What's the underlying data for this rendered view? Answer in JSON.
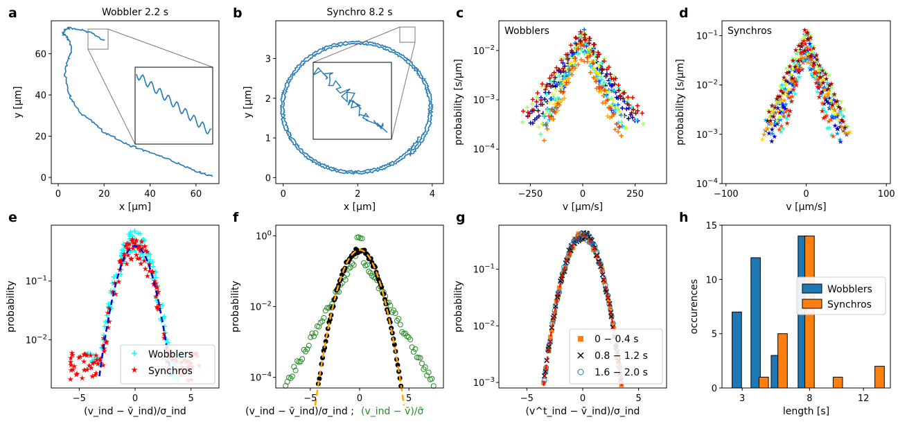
{
  "chart_data": [
    {
      "panel": "a",
      "type": "line",
      "title": "Wobbler 2.2 s",
      "xlabel": "x [μm]",
      "ylabel": "y [μm]",
      "xlim": [
        -3,
        70
      ],
      "ylim": [
        -3,
        76
      ],
      "xticks": [
        0,
        20,
        40,
        60
      ],
      "yticks": [
        0,
        20,
        40,
        60
      ],
      "color": "#1f77b4",
      "x": [
        67,
        64,
        60,
        55,
        50,
        45,
        40,
        35,
        30,
        25,
        20,
        15,
        10,
        6,
        4,
        3,
        4,
        6,
        5,
        3,
        2,
        3,
        5,
        9,
        15,
        21
      ],
      "y": [
        0.5,
        1.5,
        3,
        5.5,
        8,
        10,
        12,
        14,
        16,
        19,
        22,
        27,
        31,
        37,
        43,
        50,
        57,
        61,
        66,
        69,
        70,
        72,
        72.5,
        72,
        70,
        66
      ]
    },
    {
      "panel": "b",
      "type": "line",
      "title": "Synchro 8.2 s",
      "xlabel": "x [μm]",
      "ylabel": "y [μm]",
      "xlim": [
        -0.2,
        4.3
      ],
      "ylim": [
        -0.15,
        3.95
      ],
      "xticks": [
        0,
        2,
        4
      ],
      "yticks": [
        0,
        1,
        2,
        3
      ],
      "color": "#1f77b4",
      "circle_center": [
        1.95,
        1.75
      ],
      "circle_radius": [
        2.05,
        1.7
      ]
    },
    {
      "panel": "c",
      "type": "scatter",
      "annotation": "Wobblers",
      "xlabel": "v [μm/s]",
      "ylabel": "probability [s/μm]",
      "xlim": [
        -400,
        400
      ],
      "ylim": [
        2e-05,
        0.04
      ],
      "log_y": true,
      "xticks": [
        -250,
        0,
        250
      ],
      "yticks": [
        "10^-4",
        "10^-3",
        "10^-2"
      ]
    },
    {
      "panel": "d",
      "type": "scatter",
      "annotation": "Synchros",
      "xlabel": "v [μm/s]",
      "ylabel": "probability [s/μm]",
      "xlim": [
        -105,
        105
      ],
      "ylim": [
        0.0001,
        0.2
      ],
      "log_y": true,
      "xticks": [
        -100,
        0,
        100
      ],
      "yticks": [
        "10^-4",
        "10^-3",
        "10^-2",
        "10^-1"
      ]
    },
    {
      "panel": "e",
      "type": "scatter",
      "xlabel": "(v_ind − v̄_ind)/σ_ind",
      "ylabel": "probability",
      "xlim": [
        -7.5,
        7.5
      ],
      "ylim": [
        0.0015,
        0.9
      ],
      "log_y": true,
      "xticks": [
        -5,
        0,
        5
      ],
      "yticks": [
        "10^-2",
        "10^-1"
      ],
      "series": [
        {
          "name": "Wobblers",
          "color": "#00ffff",
          "marker": "+"
        },
        {
          "name": "Synchros",
          "color": "#ff0000",
          "marker": "*"
        }
      ],
      "fit": {
        "type": "gaussian",
        "color": "#0000cc",
        "dashed": true
      }
    },
    {
      "panel": "f",
      "type": "scatter",
      "xlabel_black": "(v_ind − v̄_ind)/σ_ind ;",
      "xlabel_green": "(v_ind − v̄)/σ̄",
      "ylabel": "probability",
      "xlim": [
        -8.5,
        8.5
      ],
      "ylim": [
        5e-05,
        2
      ],
      "log_y": true,
      "xticks": [
        -5,
        0,
        5
      ],
      "yticks": [
        "10^-4",
        "10^-2",
        "10^0"
      ]
    },
    {
      "panel": "g",
      "type": "scatter",
      "xlabel": "(v^t_ind − v̄_ind)/σ_ind",
      "ylabel": "probability",
      "xlim": [
        -7.5,
        7.5
      ],
      "ylim": [
        0.0008,
        0.6
      ],
      "log_y": true,
      "xticks": [
        -5,
        0,
        5
      ],
      "yticks": [
        "10^-3",
        "10^-2",
        "10^-1"
      ],
      "series": [
        {
          "name": "0 − 0.4 s",
          "color": "#ff7f0e",
          "marker": "square"
        },
        {
          "name": "0.8 − 1.2 s",
          "color": "#000000",
          "marker": "x"
        },
        {
          "name": "1.6 − 2.0 s",
          "color": "#1f77b4",
          "marker": "open-circle"
        }
      ]
    },
    {
      "panel": "h",
      "type": "bar",
      "xlabel": "length [s]",
      "ylabel": "occurences",
      "xlim": [
        1.5,
        14
      ],
      "ylim": [
        0,
        15
      ],
      "xticks": [
        3,
        8,
        12
      ],
      "yticks": [
        0,
        5,
        10,
        15
      ],
      "series": [
        {
          "name": "Wobblers",
          "color": "#1f77b4",
          "x": [
            2.6,
            4.0,
            5.5,
            7.5
          ],
          "values": [
            7,
            12,
            3,
            14
          ]
        },
        {
          "name": "Synchros",
          "color": "#ff7f0e",
          "x": [
            4.6,
            6.0,
            8.0,
            10.1,
            13.2
          ],
          "values": [
            1,
            5,
            14,
            1,
            2
          ]
        }
      ],
      "bar_width": 0.7
    }
  ]
}
